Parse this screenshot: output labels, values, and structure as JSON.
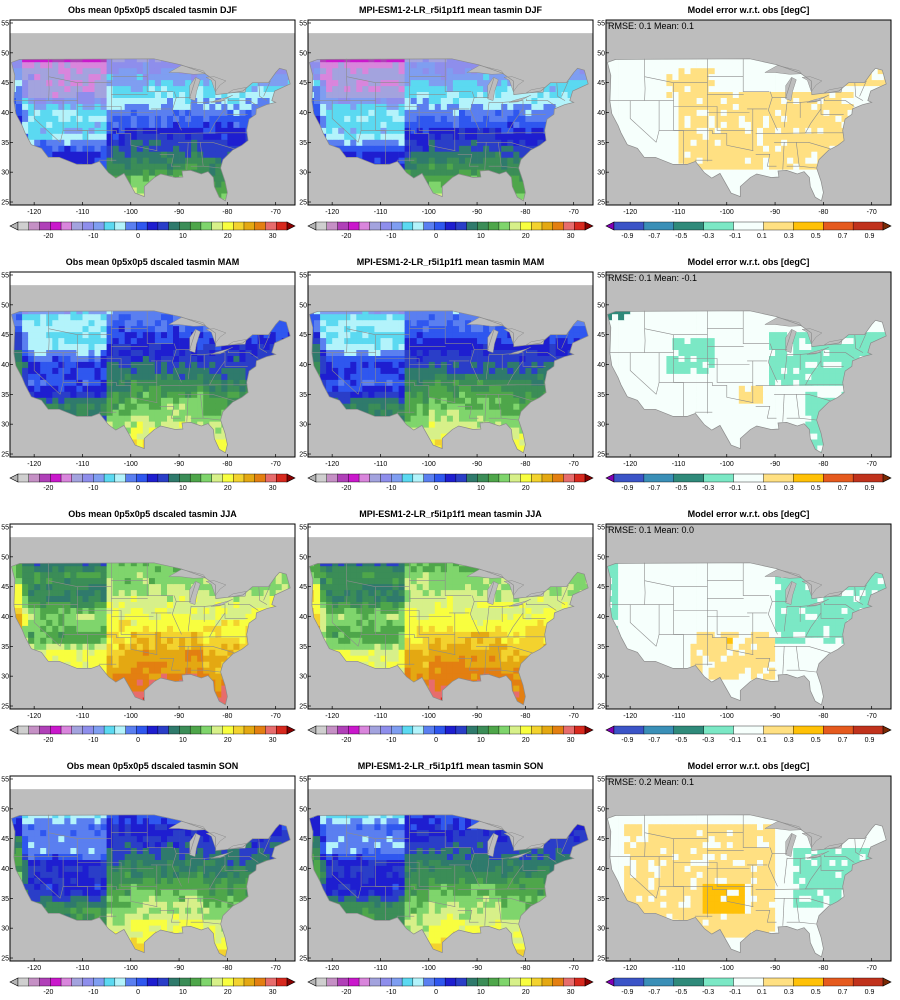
{
  "figure": {
    "colors": {
      "land_mask": "#bdbdbd",
      "frame": "#000000",
      "border": "#8c8c8c",
      "water": "#ffffff"
    },
    "temp_scale": {
      "ticks": [
        "-20",
        "-10",
        "0",
        "10",
        "20",
        "30"
      ],
      "colors": [
        "#b5b5b5",
        "#cfcfcf",
        "#c590c5",
        "#b040b8",
        "#ca18cc",
        "#d985dc",
        "#a3a3de",
        "#8e8eec",
        "#7f9ef1",
        "#5bd9f1",
        "#b3f3fb",
        "#5a7ff0",
        "#2f57ef",
        "#1e1ed0",
        "#2a3ec8",
        "#2f7a6c",
        "#3b8d57",
        "#4ea64a",
        "#7fd56c",
        "#d7f089",
        "#f8fe3f",
        "#f3d22e",
        "#e4a812",
        "#e37f11",
        "#e76c6c",
        "#d8291e",
        "#8b0000"
      ]
    },
    "error_scale": {
      "ticks": [
        "-0.9",
        "-0.7",
        "-0.5",
        "-0.3",
        "-0.1",
        "0.1",
        "0.3",
        "0.5",
        "0.7",
        "0.9"
      ],
      "colors": [
        "#8100b5",
        "#3b54c7",
        "#3a8fb7",
        "#2f8a7a",
        "#7be8c5",
        "#f6fffc",
        "#ffe082",
        "#ffc107",
        "#e55a1e",
        "#c0321c",
        "#7a2a05"
      ]
    },
    "panels": [
      {
        "kind": "obs",
        "title": "Obs mean 0p5x0p5 dscaled tasmin DJF",
        "x_ticks": [
          "-120",
          "-110",
          "-100",
          "-90",
          "-80",
          "-70"
        ],
        "y_ticks": [
          "25",
          "30",
          "35",
          "40",
          "45",
          "50",
          "55"
        ],
        "chart_data": {
          "type": "heatmap",
          "season": "DJF",
          "variable": "tasmin",
          "units": "degC",
          "lat_range": [
            24.5,
            55.5
          ],
          "lon_range": [
            -125,
            -66
          ]
        }
      },
      {
        "kind": "model",
        "title": "MPI-ESM1-2-LR_r5i1p1f1 mean tasmin DJF",
        "x_ticks": [
          "-120",
          "-110",
          "-100",
          "-90",
          "-80",
          "-70"
        ],
        "y_ticks": [
          "25",
          "30",
          "35",
          "40",
          "45",
          "50",
          "55"
        ],
        "chart_data": {
          "type": "heatmap",
          "season": "DJF",
          "variable": "tasmin",
          "units": "degC",
          "lat_range": [
            24.5,
            55.5
          ],
          "lon_range": [
            -125,
            -66
          ]
        }
      },
      {
        "kind": "error",
        "title": "Model error w.r.t. obs [degC]",
        "stats": "RMSE: 0.1  Mean: 0.1",
        "x_ticks": [
          "-120",
          "-110",
          "-100",
          "-90",
          "-80",
          "-70"
        ],
        "y_ticks": [
          "25",
          "30",
          "35",
          "40",
          "45",
          "50",
          "55"
        ],
        "chart_data": {
          "type": "heatmap",
          "season": "DJF",
          "rmse": 0.1,
          "mean": 0.1,
          "units": "degC"
        }
      },
      {
        "kind": "obs",
        "title": "Obs mean 0p5x0p5 dscaled tasmin MAM",
        "x_ticks": [
          "-120",
          "-110",
          "-100",
          "-90",
          "-80",
          "-70"
        ],
        "y_ticks": [
          "25",
          "30",
          "35",
          "40",
          "45",
          "50",
          "55"
        ],
        "chart_data": {
          "type": "heatmap",
          "season": "MAM",
          "variable": "tasmin",
          "units": "degC",
          "lat_range": [
            24.5,
            55.5
          ],
          "lon_range": [
            -125,
            -66
          ]
        }
      },
      {
        "kind": "model",
        "title": "MPI-ESM1-2-LR_r5i1p1f1 mean tasmin MAM",
        "x_ticks": [
          "-120",
          "-110",
          "-100",
          "-90",
          "-80",
          "-70"
        ],
        "y_ticks": [
          "25",
          "30",
          "35",
          "40",
          "45",
          "50",
          "55"
        ],
        "chart_data": {
          "type": "heatmap",
          "season": "MAM",
          "variable": "tasmin",
          "units": "degC",
          "lat_range": [
            24.5,
            55.5
          ],
          "lon_range": [
            -125,
            -66
          ]
        }
      },
      {
        "kind": "error",
        "title": "Model error w.r.t. obs [degC]",
        "stats": "RMSE: 0.1  Mean: -0.1",
        "x_ticks": [
          "-120",
          "-110",
          "-100",
          "-90",
          "-80",
          "-70"
        ],
        "y_ticks": [
          "25",
          "30",
          "35",
          "40",
          "45",
          "50",
          "55"
        ],
        "chart_data": {
          "type": "heatmap",
          "season": "MAM",
          "rmse": 0.1,
          "mean": -0.1,
          "units": "degC"
        }
      },
      {
        "kind": "obs",
        "title": "Obs mean 0p5x0p5 dscaled tasmin JJA",
        "x_ticks": [
          "-120",
          "-110",
          "-100",
          "-90",
          "-80",
          "-70"
        ],
        "y_ticks": [
          "25",
          "30",
          "35",
          "40",
          "45",
          "50",
          "55"
        ],
        "chart_data": {
          "type": "heatmap",
          "season": "JJA",
          "variable": "tasmin",
          "units": "degC",
          "lat_range": [
            24.5,
            55.5
          ],
          "lon_range": [
            -125,
            -66
          ]
        }
      },
      {
        "kind": "model",
        "title": "MPI-ESM1-2-LR_r5i1p1f1 mean tasmin JJA",
        "x_ticks": [
          "-120",
          "-110",
          "-100",
          "-90",
          "-80",
          "-70"
        ],
        "y_ticks": [
          "25",
          "30",
          "35",
          "40",
          "45",
          "50",
          "55"
        ],
        "chart_data": {
          "type": "heatmap",
          "season": "JJA",
          "variable": "tasmin",
          "units": "degC",
          "lat_range": [
            24.5,
            55.5
          ],
          "lon_range": [
            -125,
            -66
          ]
        }
      },
      {
        "kind": "error",
        "title": "Model error w.r.t. obs [degC]",
        "stats": "RMSE: 0.1  Mean: 0.0",
        "x_ticks": [
          "-120",
          "-110",
          "-100",
          "-90",
          "-80",
          "-70"
        ],
        "y_ticks": [
          "25",
          "30",
          "35",
          "40",
          "45",
          "50",
          "55"
        ],
        "chart_data": {
          "type": "heatmap",
          "season": "JJA",
          "rmse": 0.1,
          "mean": 0.0,
          "units": "degC"
        }
      },
      {
        "kind": "obs",
        "title": "Obs mean 0p5x0p5 dscaled tasmin SON",
        "x_ticks": [
          "-120",
          "-110",
          "-100",
          "-90",
          "-80",
          "-70"
        ],
        "y_ticks": [
          "25",
          "30",
          "35",
          "40",
          "45",
          "50",
          "55"
        ],
        "chart_data": {
          "type": "heatmap",
          "season": "SON",
          "variable": "tasmin",
          "units": "degC",
          "lat_range": [
            24.5,
            55.5
          ],
          "lon_range": [
            -125,
            -66
          ]
        }
      },
      {
        "kind": "model",
        "title": "MPI-ESM1-2-LR_r5i1p1f1 mean tasmin SON",
        "x_ticks": [
          "-120",
          "-110",
          "-100",
          "-90",
          "-80",
          "-70"
        ],
        "y_ticks": [
          "25",
          "30",
          "35",
          "40",
          "45",
          "50",
          "55"
        ],
        "chart_data": {
          "type": "heatmap",
          "season": "SON",
          "variable": "tasmin",
          "units": "degC",
          "lat_range": [
            24.5,
            55.5
          ],
          "lon_range": [
            -125,
            -66
          ]
        }
      },
      {
        "kind": "error",
        "title": "Model error w.r.t. obs [degC]",
        "stats": "RMSE: 0.2  Mean: 0.1",
        "x_ticks": [
          "-120",
          "-110",
          "-100",
          "-90",
          "-80",
          "-70"
        ],
        "y_ticks": [
          "25",
          "30",
          "35",
          "40",
          "45",
          "50",
          "55"
        ],
        "chart_data": {
          "type": "heatmap",
          "season": "SON",
          "rmse": 0.2,
          "mean": 0.1,
          "units": "degC"
        }
      }
    ]
  }
}
